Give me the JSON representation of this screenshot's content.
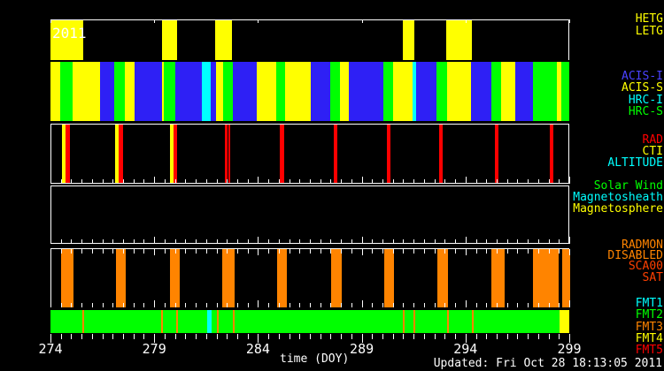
{
  "footer": {
    "updated": "Updated: Fri Oct 28 18:13:05 2011"
  },
  "colors": {
    "yellow": "#ffff00",
    "green": "#00ff00",
    "blue": "#2e20f5",
    "cyan": "#00ffff",
    "red": "#ff0000",
    "orange": "#ff8400",
    "label_blue": "#4a42ff",
    "red_orange": "#ff4000",
    "white": "#ffffff"
  },
  "chart_data": {
    "type": "timeline",
    "title": "2011",
    "xlabel": "time (DOY)",
    "x_range": [
      274,
      299
    ],
    "x_major_ticks": [
      274,
      279,
      284,
      289,
      294,
      299
    ],
    "x_minor_step": 0.5,
    "legend_position": "right",
    "tracks": [
      {
        "id": "gratings",
        "labels_right": [
          {
            "text": "HETG",
            "color": "yellow"
          },
          {
            "text": "LETG",
            "color": "yellow"
          }
        ],
        "segments": [
          [
            274.0,
            275.58,
            "yellow"
          ],
          [
            279.38,
            280.1,
            "yellow"
          ],
          [
            281.93,
            282.75,
            "yellow"
          ],
          [
            290.98,
            291.53,
            "yellow"
          ],
          [
            293.07,
            294.31,
            "yellow"
          ]
        ]
      },
      {
        "id": "instruments",
        "labels_right": [
          {
            "text": "ACIS-I",
            "color": "label_blue"
          },
          {
            "text": "ACIS-S",
            "color": "yellow"
          },
          {
            "text": "HRC-I",
            "color": "cyan"
          },
          {
            "text": "HRC-S",
            "color": "green"
          }
        ],
        "segments": [
          [
            274.0,
            274.47,
            "yellow"
          ],
          [
            274.47,
            275.07,
            "green"
          ],
          [
            275.07,
            276.39,
            "yellow"
          ],
          [
            276.39,
            277.07,
            "blue"
          ],
          [
            277.07,
            277.58,
            "green"
          ],
          [
            277.58,
            278.05,
            "yellow"
          ],
          [
            278.05,
            279.38,
            "blue"
          ],
          [
            279.38,
            279.46,
            "yellow"
          ],
          [
            279.46,
            280.02,
            "green"
          ],
          [
            280.02,
            281.29,
            "blue"
          ],
          [
            281.29,
            281.72,
            "cyan"
          ],
          [
            281.72,
            281.98,
            "blue"
          ],
          [
            281.98,
            282.32,
            "yellow"
          ],
          [
            282.32,
            282.79,
            "green"
          ],
          [
            282.79,
            283.94,
            "blue"
          ],
          [
            283.94,
            284.88,
            "yellow"
          ],
          [
            284.88,
            285.3,
            "green"
          ],
          [
            285.3,
            286.54,
            "yellow"
          ],
          [
            286.54,
            287.48,
            "blue"
          ],
          [
            287.48,
            287.95,
            "green"
          ],
          [
            287.95,
            288.38,
            "yellow"
          ],
          [
            288.38,
            290.04,
            "blue"
          ],
          [
            290.04,
            290.51,
            "green"
          ],
          [
            290.51,
            291.45,
            "yellow"
          ],
          [
            291.45,
            291.62,
            "cyan"
          ],
          [
            291.62,
            292.6,
            "blue"
          ],
          [
            292.6,
            293.11,
            "green"
          ],
          [
            293.11,
            294.26,
            "yellow"
          ],
          [
            294.26,
            295.24,
            "blue"
          ],
          [
            295.24,
            295.71,
            "green"
          ],
          [
            295.71,
            296.4,
            "yellow"
          ],
          [
            296.4,
            297.25,
            "blue"
          ],
          [
            297.25,
            298.4,
            "green"
          ],
          [
            298.4,
            298.62,
            "yellow"
          ],
          [
            298.62,
            299.0,
            "green"
          ]
        ]
      },
      {
        "id": "radzone",
        "labels_right": [
          {
            "text": "RAD",
            "color": "red"
          },
          {
            "text": "CTI",
            "color": "yellow"
          },
          {
            "text": "ALTITUDE",
            "color": "cyan"
          }
        ],
        "segments": [
          [
            274.51,
            274.68,
            "yellow"
          ],
          [
            274.68,
            274.9,
            "red"
          ],
          [
            277.07,
            277.24,
            "yellow"
          ],
          [
            277.24,
            277.46,
            "red"
          ],
          [
            279.72,
            279.89,
            "yellow"
          ],
          [
            279.89,
            280.06,
            "red"
          ],
          [
            282.38,
            282.47,
            "red"
          ],
          [
            282.53,
            282.62,
            "red"
          ],
          [
            285.01,
            285.22,
            "red"
          ],
          [
            287.61,
            287.78,
            "red"
          ],
          [
            290.17,
            290.34,
            "red"
          ],
          [
            292.69,
            292.86,
            "red"
          ],
          [
            295.37,
            295.54,
            "red"
          ],
          [
            298.02,
            298.19,
            "red"
          ]
        ]
      },
      {
        "id": "solar-wind-region",
        "labels_right": [
          {
            "text": "Solar Wind",
            "color": "green"
          },
          {
            "text": "Magnetosheath",
            "color": "cyan"
          },
          {
            "text": "Magnetosphere",
            "color": "yellow"
          }
        ],
        "segments": []
      },
      {
        "id": "radmon",
        "labels_right": [
          {
            "text": "RADMON",
            "color": "orange"
          },
          {
            "text": "DISABLED",
            "color": "orange"
          },
          {
            "text": "SCA00",
            "color": "red_orange"
          },
          {
            "text": "SAT",
            "color": "red_orange"
          }
        ],
        "segments": [
          [
            274.47,
            275.07,
            "orange"
          ],
          [
            277.11,
            277.58,
            "orange"
          ],
          [
            279.72,
            280.19,
            "orange"
          ],
          [
            282.23,
            282.83,
            "orange"
          ],
          [
            284.88,
            285.35,
            "orange"
          ],
          [
            287.48,
            288.0,
            "orange"
          ],
          [
            290.04,
            290.51,
            "orange"
          ],
          [
            292.6,
            293.11,
            "orange"
          ],
          [
            295.2,
            295.84,
            "orange"
          ],
          [
            297.21,
            298.45,
            "orange"
          ],
          [
            298.62,
            299.0,
            "orange"
          ]
        ]
      },
      {
        "id": "telemetry-format",
        "labels_right": [
          {
            "text": "FMT1",
            "color": "cyan"
          },
          {
            "text": "FMT2",
            "color": "green"
          },
          {
            "text": "FMT3",
            "color": "orange"
          },
          {
            "text": "FMT4",
            "color": "yellow"
          },
          {
            "text": "FMT5",
            "color": "red"
          }
        ],
        "segments": [
          [
            274.0,
            298.53,
            "green"
          ],
          [
            298.53,
            299.0,
            "yellow"
          ],
          [
            281.55,
            281.76,
            "cyan"
          ],
          [
            275.54,
            275.62,
            "orange"
          ],
          [
            279.33,
            279.41,
            "orange"
          ],
          [
            280.06,
            280.14,
            "orange"
          ],
          [
            282.02,
            282.1,
            "orange"
          ],
          [
            282.79,
            282.87,
            "orange"
          ],
          [
            290.98,
            291.06,
            "orange"
          ],
          [
            291.49,
            291.57,
            "orange"
          ],
          [
            293.11,
            293.19,
            "orange"
          ],
          [
            294.31,
            294.39,
            "orange"
          ]
        ]
      }
    ]
  }
}
